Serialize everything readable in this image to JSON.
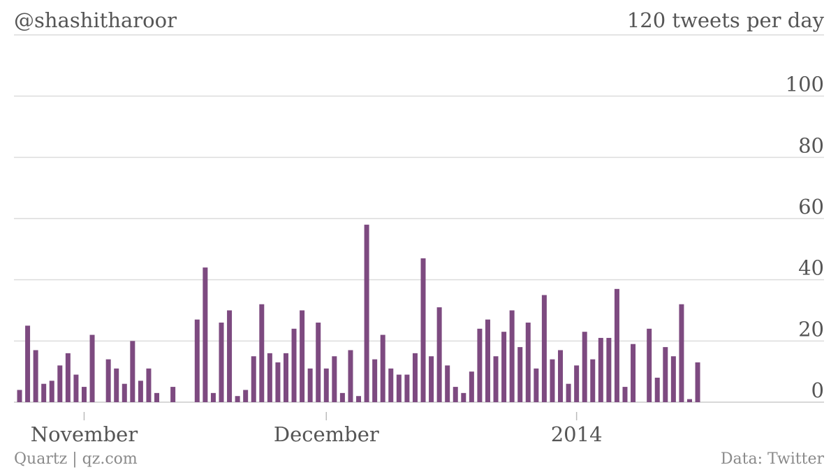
{
  "header": {
    "title": "@shashitharoor",
    "unit_label": "120 tweets per day"
  },
  "footer": {
    "source_left": "Quartz | qz.com",
    "source_right": "Data: Twitter"
  },
  "colors": {
    "bar": "#7d4a80",
    "text": "#555555",
    "grid": "#dcdcdc"
  },
  "chart_data": {
    "type": "bar",
    "title": "@shashitharoor",
    "ylabel": "120 tweets per day",
    "xlabel": "",
    "ylim": [
      0,
      120
    ],
    "yticks": [
      0,
      20,
      40,
      60,
      80,
      100
    ],
    "grid": true,
    "start_date": "2013-10-24",
    "xtick_labels": [
      {
        "date": "2013-11-01",
        "label": "November"
      },
      {
        "date": "2013-12-01",
        "label": "December"
      },
      {
        "date": "2014-01-01",
        "label": "2014"
      }
    ],
    "values": [
      4,
      25,
      17,
      6,
      7,
      12,
      16,
      9,
      5,
      22,
      0,
      14,
      11,
      6,
      20,
      7,
      11,
      3,
      0,
      5,
      0,
      0,
      27,
      44,
      3,
      26,
      30,
      2,
      4,
      15,
      32,
      16,
      13,
      16,
      24,
      30,
      11,
      26,
      11,
      15,
      3,
      17,
      2,
      58,
      14,
      22,
      11,
      9,
      9,
      16,
      47,
      15,
      31,
      12,
      5,
      3,
      10,
      24,
      27,
      15,
      23,
      30,
      18,
      26,
      11,
      35,
      14,
      17,
      6,
      12,
      23,
      14,
      21,
      21,
      37,
      5,
      19,
      0,
      24,
      8,
      18,
      15,
      32,
      1,
      13
    ]
  }
}
